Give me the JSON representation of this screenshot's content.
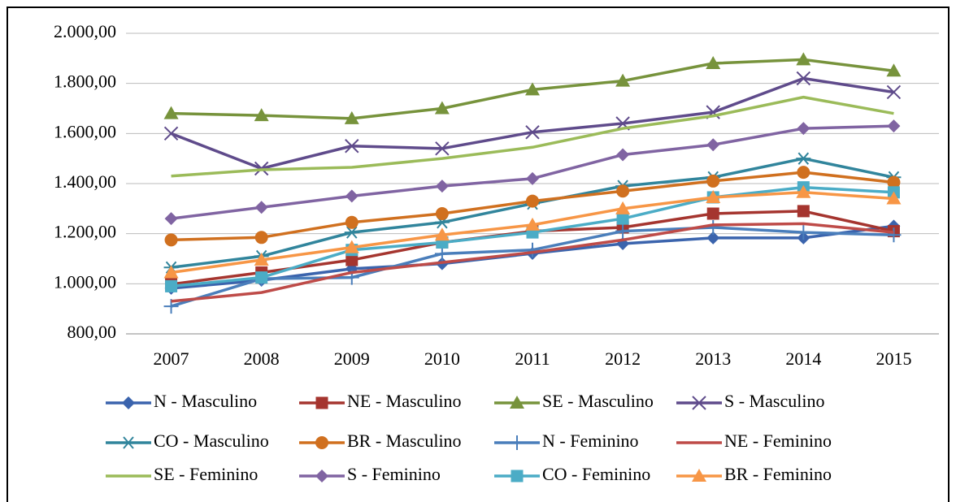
{
  "chart_data": {
    "type": "line",
    "categories": [
      "2007",
      "2008",
      "2009",
      "2010",
      "2011",
      "2012",
      "2013",
      "2014",
      "2015"
    ],
    "ylim": [
      800,
      2000
    ],
    "yticks": [
      {
        "value": 800,
        "label": "800,00"
      },
      {
        "value": 1000,
        "label": "1.000,00"
      },
      {
        "value": 1200,
        "label": "1.200,00"
      },
      {
        "value": 1400,
        "label": "1.400,00"
      },
      {
        "value": 1600,
        "label": "1.600,00"
      },
      {
        "value": 1800,
        "label": "1.800,00"
      },
      {
        "value": 2000,
        "label": "2.000,00"
      }
    ],
    "grid": true,
    "legend": "bottom",
    "series": [
      {
        "name": "N - Masculino",
        "color": "#3b64ad",
        "marker": "diamond",
        "values": [
          982,
          1014,
          1060,
          1080,
          1121,
          1160,
          1183,
          1183,
          1230
        ]
      },
      {
        "name": "NE - Masculino",
        "color": "#a5352f",
        "marker": "square",
        "values": [
          998,
          1045,
          1095,
          1165,
          1210,
          1225,
          1280,
          1290,
          1210
        ]
      },
      {
        "name": "SE - Masculino",
        "color": "#77933c",
        "marker": "triangle",
        "values": [
          1680,
          1672,
          1660,
          1700,
          1775,
          1810,
          1880,
          1895,
          1850
        ]
      },
      {
        "name": "S - Masculino",
        "color": "#5f4b8b",
        "marker": "x",
        "values": [
          1600,
          1460,
          1550,
          1540,
          1605,
          1640,
          1685,
          1820,
          1765
        ]
      },
      {
        "name": "CO - Masculino",
        "color": "#31859c",
        "marker": "star",
        "values": [
          1065,
          1110,
          1205,
          1245,
          1320,
          1390,
          1425,
          1500,
          1425
        ]
      },
      {
        "name": "BR - Masculino",
        "color": "#d0701f",
        "marker": "circle",
        "values": [
          1175,
          1185,
          1245,
          1280,
          1330,
          1370,
          1410,
          1445,
          1405
        ]
      },
      {
        "name": "N - Feminino",
        "color": "#4a7ebb",
        "marker": "plus",
        "values": [
          910,
          1020,
          1025,
          1120,
          1135,
          1210,
          1225,
          1205,
          1195
        ]
      },
      {
        "name": "NE - Feminino",
        "color": "#be4b48",
        "marker": "none",
        "values": [
          930,
          965,
          1045,
          1085,
          1125,
          1175,
          1235,
          1240,
          1205
        ]
      },
      {
        "name": "SE - Feminino",
        "color": "#9bbb59",
        "marker": "none",
        "values": [
          1430,
          1455,
          1465,
          1500,
          1545,
          1620,
          1670,
          1745,
          1680
        ]
      },
      {
        "name": "S - Feminino",
        "color": "#8064a2",
        "marker": "diamond",
        "values": [
          1260,
          1305,
          1350,
          1390,
          1420,
          1515,
          1555,
          1620,
          1630
        ]
      },
      {
        "name": "CO - Feminino",
        "color": "#4bacc6",
        "marker": "square",
        "values": [
          990,
          1025,
          1135,
          1165,
          1205,
          1260,
          1345,
          1385,
          1365
        ]
      },
      {
        "name": "BR - Feminino",
        "color": "#f79646",
        "marker": "triangle",
        "values": [
          1045,
          1095,
          1145,
          1195,
          1235,
          1300,
          1345,
          1365,
          1340
        ]
      }
    ]
  }
}
